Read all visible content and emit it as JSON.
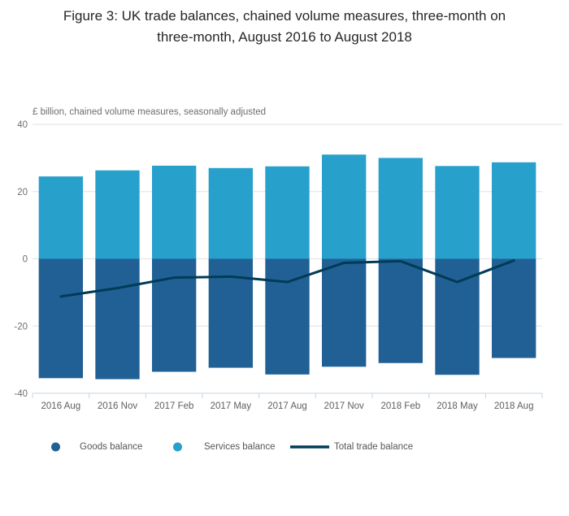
{
  "title": {
    "line1": "Figure 3: UK trade balances, chained volume measures, three-month on",
    "line2": "three-month, August 2016 to August 2018"
  },
  "chart_data": {
    "type": "bar",
    "title": "Figure 3: UK trade balances, chained volume measures, three-month on three-month, August 2016 to August 2018",
    "subtitle": "£ billion, chained volume measures, seasonally adjusted",
    "xlabel": "",
    "ylabel": "£ billion",
    "categories": [
      "2016 Aug",
      "2016 Nov",
      "2017 Feb",
      "2017 May",
      "2017 Aug",
      "2017 Nov",
      "2018 Feb",
      "2018 May",
      "2018 Aug"
    ],
    "series": [
      {
        "name": "Goods balance",
        "type": "bar",
        "color": "#206095",
        "values": [
          -35.5,
          -35.8,
          -33.6,
          -32.4,
          -34.4,
          -32.1,
          -31.0,
          -34.5,
          -29.5
        ]
      },
      {
        "name": "Services balance",
        "type": "bar",
        "color": "#27A0CC",
        "values": [
          24.5,
          26.3,
          27.7,
          27.0,
          27.5,
          31.0,
          30.0,
          27.6,
          28.7
        ]
      },
      {
        "name": "Total trade balance",
        "type": "line",
        "color": "#003C57",
        "values": [
          -11.2,
          -8.7,
          -5.6,
          -5.3,
          -6.9,
          -1.2,
          -0.7,
          -6.9,
          -0.5
        ]
      }
    ],
    "ylim": [
      -40,
      40
    ],
    "yticks": [
      40,
      20,
      0,
      -20,
      -40
    ],
    "grid": true,
    "legend_position": "bottom",
    "bar_mode": "stacked-diverging"
  },
  "colors": {
    "gridline": "#e0e0e0",
    "axis_line": "#c5d4e1",
    "tick_label": "#6e6e6e",
    "category_label": "#5f5f5f"
  }
}
